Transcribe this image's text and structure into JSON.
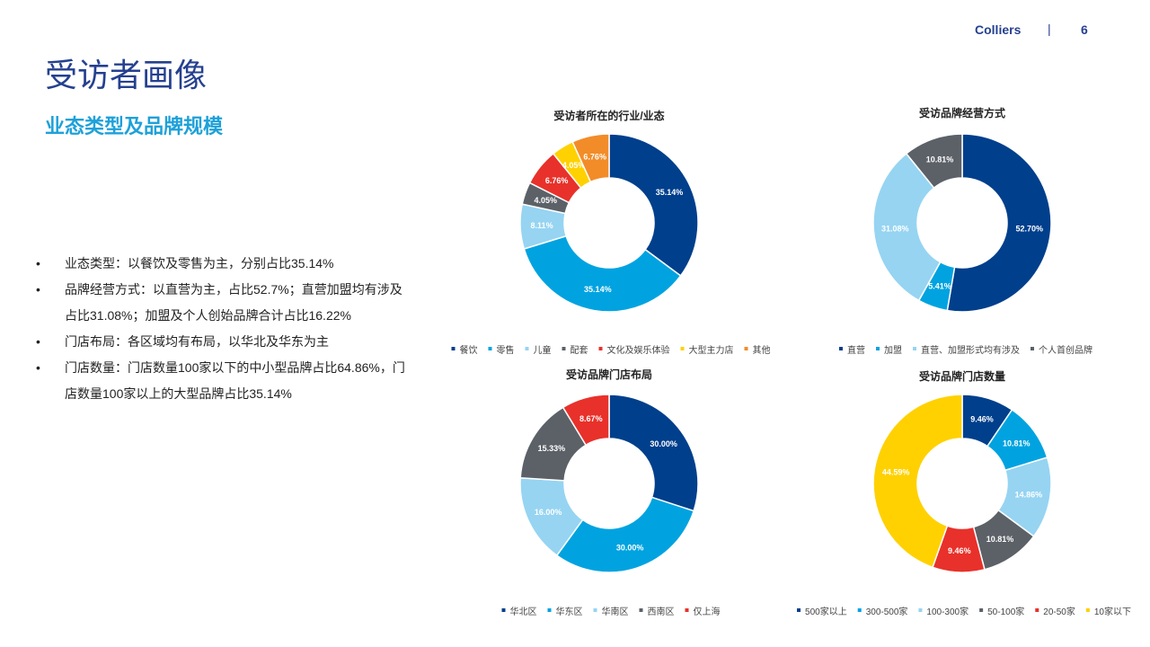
{
  "header": {
    "brand": "Colliers",
    "separator": "|",
    "page_number": "6"
  },
  "page_title": "受访者画像",
  "subtitle": "业态类型及品牌规模",
  "bullets": [
    "业态类型：以餐饮及零售为主，分别占比35.14%",
    "品牌经营方式：以直营为主，占比52.7%；直营加盟均有涉及占比31.08%；加盟及个人创始品牌合计占比16.22%",
    "门店布局：各区域均有布局，以华北及华东为主",
    "门店数量：门店数量100家以下的中小型品牌占比64.86%，门店数量100家以上的大型品牌占比35.14%"
  ],
  "chart_data": [
    {
      "type": "pie",
      "title": "受访者所在的行业/业态",
      "categories": [
        "餐饮",
        "零售",
        "儿童",
        "配套",
        "文化及娱乐体验",
        "大型主力店",
        "其他"
      ],
      "values": [
        35.14,
        35.14,
        8.11,
        4.05,
        6.76,
        4.05,
        6.76
      ],
      "labels": [
        "35.14%",
        "35.14%",
        "8.11%",
        "4.05%",
        "6.76%",
        "4.05%",
        "6.76%"
      ],
      "colors": [
        "#003f8c",
        "#00a3e0",
        "#96d4f2",
        "#5c6168",
        "#e8312a",
        "#ffd100",
        "#f28c28"
      ],
      "legend": "bottom"
    },
    {
      "type": "pie",
      "title": "受访品牌经营方式",
      "categories": [
        "直营",
        "加盟",
        "直营、加盟形式均有涉及",
        "个人首创品牌"
      ],
      "values": [
        52.7,
        5.41,
        31.08,
        10.81
      ],
      "labels": [
        "52.70%",
        "5.41%",
        "31.08%",
        "10.81%"
      ],
      "colors": [
        "#003f8c",
        "#00a3e0",
        "#96d4f2",
        "#5c6168"
      ],
      "legend": "bottom"
    },
    {
      "type": "pie",
      "title": "受访品牌门店布局",
      "categories": [
        "华北区",
        "华东区",
        "华南区",
        "西南区",
        "仅上海"
      ],
      "values": [
        30.0,
        30.0,
        16.0,
        15.33,
        8.67
      ],
      "labels": [
        "30.00%",
        "30.00%",
        "16.00%",
        "15.33%",
        "8.67%"
      ],
      "colors": [
        "#003f8c",
        "#00a3e0",
        "#96d4f2",
        "#5c6168",
        "#e8312a"
      ],
      "legend": "bottom"
    },
    {
      "type": "pie",
      "title": "受访品牌门店数量",
      "categories": [
        "500家以上",
        "300-500家",
        "100-300家",
        "50-100家",
        "20-50家",
        "10家以下"
      ],
      "values": [
        9.46,
        10.81,
        14.86,
        10.81,
        9.46,
        44.59
      ],
      "labels": [
        "9.46%",
        "10.81%",
        "14.86%",
        "10.81%",
        "9.46%",
        "44.59%"
      ],
      "colors": [
        "#003f8c",
        "#00a3e0",
        "#96d4f2",
        "#5c6168",
        "#e8312a",
        "#ffd100"
      ],
      "legend": "bottom"
    }
  ]
}
